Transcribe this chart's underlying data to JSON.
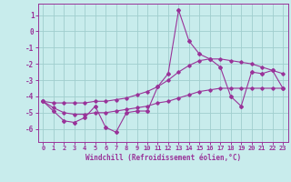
{
  "xlabel": "Windchill (Refroidissement éolien,°C)",
  "background_color": "#c8ecec",
  "grid_color": "#a0cece",
  "line_color": "#993399",
  "hours": [
    0,
    1,
    2,
    3,
    4,
    5,
    6,
    7,
    8,
    9,
    10,
    11,
    12,
    13,
    14,
    15,
    16,
    17,
    18,
    19,
    20,
    21,
    22,
    23
  ],
  "main_values": [
    -4.3,
    -4.9,
    -5.5,
    -5.6,
    -5.3,
    -4.6,
    -5.9,
    -6.2,
    -5.0,
    -4.9,
    -4.9,
    -3.4,
    -2.6,
    1.3,
    -0.6,
    -1.4,
    -1.7,
    -2.2,
    -4.0,
    -4.6,
    -2.5,
    -2.6,
    -2.4,
    -3.5
  ],
  "smooth_low": [
    -4.3,
    -4.7,
    -5.0,
    -5.1,
    -5.1,
    -5.0,
    -5.0,
    -4.9,
    -4.8,
    -4.7,
    -4.6,
    -4.4,
    -4.3,
    -4.1,
    -3.9,
    -3.7,
    -3.6,
    -3.5,
    -3.5,
    -3.5,
    -3.5,
    -3.5,
    -3.5,
    -3.5
  ],
  "smooth_high": [
    -4.3,
    -4.4,
    -4.4,
    -4.4,
    -4.4,
    -4.3,
    -4.3,
    -4.2,
    -4.1,
    -3.9,
    -3.7,
    -3.4,
    -3.0,
    -2.5,
    -2.1,
    -1.8,
    -1.7,
    -1.7,
    -1.8,
    -1.9,
    -2.0,
    -2.2,
    -2.4,
    -2.6
  ],
  "ylim": [
    -6.8,
    1.7
  ],
  "yticks": [
    1,
    0,
    -1,
    -2,
    -3,
    -4,
    -5,
    -6
  ],
  "xlim": [
    -0.5,
    23.5
  ]
}
